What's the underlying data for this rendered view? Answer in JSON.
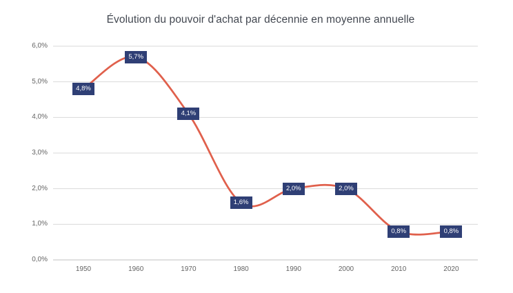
{
  "chart_data": {
    "type": "line",
    "title": "Évolution du pouvoir d'achat par décennie en moyenne annuelle",
    "categories": [
      "1950",
      "1960",
      "1970",
      "1980",
      "1990",
      "2000",
      "2010",
      "2020"
    ],
    "values": [
      4.8,
      5.7,
      4.1,
      1.6,
      2.0,
      2.0,
      0.8,
      0.8
    ],
    "point_labels": [
      "4,8%",
      "5,7%",
      "4,1%",
      "1,6%",
      "2,0%",
      "2,0%",
      "0,8%",
      "0,8%"
    ],
    "y_ticks": [
      0,
      1,
      2,
      3,
      4,
      5,
      6
    ],
    "y_tick_labels": [
      "0,0%",
      "1,0%",
      "2,0%",
      "3,0%",
      "4,0%",
      "5,0%",
      "6,0%"
    ],
    "ylim": [
      0,
      6
    ],
    "xlabel": "",
    "ylabel": "",
    "grid": true,
    "legend": "none",
    "line_smooth": true,
    "colors": {
      "line": "#e0604c",
      "label_bg": "#2f3f75",
      "label_text": "#ffffff",
      "grid": "#d9d9d9",
      "axis": "#c2c2c2",
      "tick_text": "#636363",
      "title_text": "#424750",
      "background": "#ffffff"
    }
  }
}
